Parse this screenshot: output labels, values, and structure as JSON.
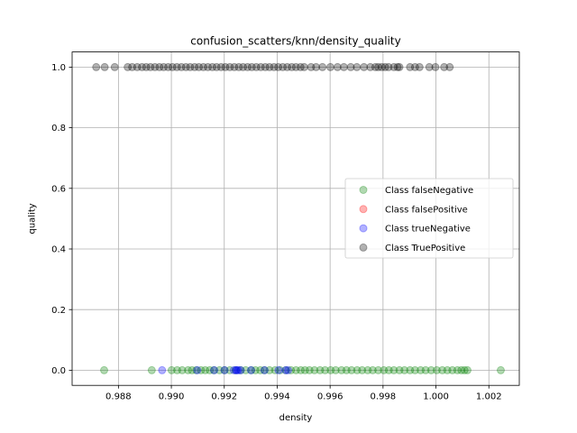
{
  "chart_data": {
    "type": "scatter",
    "title": "confusion_scatters/knn/density_quality",
    "xlabel": "density",
    "ylabel": "quality",
    "xlim": [
      0.98625,
      1.00315
    ],
    "ylim": [
      -0.05,
      1.05
    ],
    "x_ticks": [
      0.988,
      0.99,
      0.992,
      0.994,
      0.996,
      0.998,
      1.0,
      1.002
    ],
    "x_tick_labels": [
      "0.988",
      "0.990",
      "0.992",
      "0.994",
      "0.996",
      "0.998",
      "1.000",
      "1.002"
    ],
    "y_ticks": [
      0.0,
      0.2,
      0.4,
      0.6,
      0.8,
      1.0
    ],
    "y_tick_labels": [
      "0.0",
      "0.2",
      "0.4",
      "0.6",
      "0.8",
      "1.0"
    ],
    "grid": true,
    "legend_position": "center-right",
    "series": [
      {
        "name": "Class falseNegative",
        "color": "#008000",
        "alpha": 0.3,
        "y": 0,
        "x": [
          0.98746,
          0.98926,
          0.99001,
          0.99022,
          0.99041,
          0.99063,
          0.99078,
          0.99094,
          0.99112,
          0.99128,
          0.99145,
          0.99161,
          0.99182,
          0.99201,
          0.99221,
          0.99243,
          0.99262,
          0.99281,
          0.99302,
          0.99318,
          0.99336,
          0.99352,
          0.99371,
          0.99392,
          0.99411,
          0.99433,
          0.99452,
          0.99471,
          0.99489,
          0.99505,
          0.99522,
          0.99541,
          0.99562,
          0.99581,
          0.99602,
          0.99621,
          0.99643,
          0.99662,
          0.99681,
          0.99702,
          0.99721,
          0.99742,
          0.99761,
          0.99782,
          0.99803,
          0.99822,
          0.99841,
          0.99862,
          0.99881,
          0.99902,
          0.99921,
          0.99942,
          0.99961,
          0.99982,
          1.00003,
          1.00024,
          1.00043,
          1.00062,
          1.00081,
          1.00096,
          1.00108,
          1.00119,
          1.00245
        ]
      },
      {
        "name": "Class falsePositive",
        "color": "#ff0000",
        "alpha": 0.3,
        "y": 0,
        "x": []
      },
      {
        "name": "Class trueNegative",
        "color": "#0000ff",
        "alpha": 0.3,
        "y": 0,
        "x": [
          0.98965,
          0.99098,
          0.99162,
          0.99201,
          0.99236,
          0.99244,
          0.99248,
          0.99253,
          0.99262,
          0.99301,
          0.99352,
          0.99405,
          0.99432,
          0.99441
        ]
      },
      {
        "name": "Class TruePositive",
        "color": "#000000",
        "alpha": 0.3,
        "y": 1,
        "x": [
          0.98716,
          0.98748,
          0.98786,
          0.98835,
          0.98852,
          0.98871,
          0.98889,
          0.98905,
          0.98921,
          0.98938,
          0.98955,
          0.98971,
          0.98988,
          0.99004,
          0.99021,
          0.99038,
          0.99055,
          0.99071,
          0.99088,
          0.99104,
          0.99121,
          0.99138,
          0.99155,
          0.99171,
          0.99188,
          0.99204,
          0.99221,
          0.99238,
          0.99255,
          0.99271,
          0.99288,
          0.99304,
          0.99321,
          0.99338,
          0.99355,
          0.99371,
          0.99388,
          0.99404,
          0.99421,
          0.99438,
          0.99455,
          0.99471,
          0.99488,
          0.99502,
          0.99528,
          0.99547,
          0.99571,
          0.99601,
          0.99628,
          0.99652,
          0.99678,
          0.99701,
          0.99728,
          0.99752,
          0.99771,
          0.99782,
          0.99795,
          0.99808,
          0.99821,
          0.99841,
          0.99855,
          0.99862,
          0.99902,
          0.99921,
          0.99938,
          0.99975,
          0.99998,
          1.00031,
          1.00052
        ]
      }
    ]
  }
}
